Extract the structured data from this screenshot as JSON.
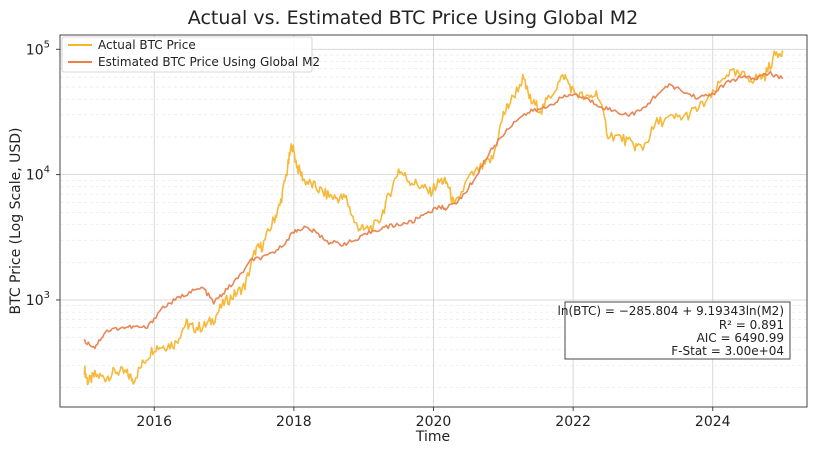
{
  "chart_data": {
    "type": "line",
    "title": "Actual vs. Estimated BTC Price Using Global M2",
    "xlabel": "Time",
    "ylabel": "BTC Price (Log Scale, USD)",
    "yscale": "log",
    "xlim": [
      2014.65,
      2025.35
    ],
    "ylim": [
      140,
      130000
    ],
    "x_ticks": [
      2016,
      2018,
      2020,
      2022,
      2024
    ],
    "x_tick_labels": [
      "2016",
      "2018",
      "2020",
      "2022",
      "2024"
    ],
    "y_ticks": [
      1000,
      10000,
      100000
    ],
    "y_tick_labels": [
      {
        "base": "10",
        "exp": "3"
      },
      {
        "base": "10",
        "exp": "4"
      },
      {
        "base": "10",
        "exp": "5"
      }
    ],
    "grid": true,
    "legend_position": "top-left",
    "series": [
      {
        "name": "Actual BTC Price",
        "color": "#f5b52e",
        "x": [
          2015.0,
          2015.05,
          2015.15,
          2015.3,
          2015.45,
          2015.6,
          2015.7,
          2015.85,
          2016.0,
          2016.15,
          2016.3,
          2016.45,
          2016.55,
          2016.7,
          2016.85,
          2017.0,
          2017.15,
          2017.3,
          2017.45,
          2017.55,
          2017.7,
          2017.8,
          2017.9,
          2017.97,
          2018.05,
          2018.15,
          2018.3,
          2018.45,
          2018.6,
          2018.75,
          2018.88,
          2019.0,
          2019.2,
          2019.35,
          2019.5,
          2019.65,
          2019.8,
          2019.95,
          2020.1,
          2020.2,
          2020.3,
          2020.5,
          2020.7,
          2020.85,
          2021.0,
          2021.1,
          2021.28,
          2021.4,
          2021.55,
          2021.7,
          2021.87,
          2022.0,
          2022.2,
          2022.35,
          2022.5,
          2022.7,
          2022.87,
          2023.0,
          2023.2,
          2023.4,
          2023.6,
          2023.8,
          2024.0,
          2024.2,
          2024.4,
          2024.6,
          2024.75,
          2024.9,
          2025.0
        ],
        "values": [
          280,
          220,
          250,
          240,
          270,
          260,
          230,
          320,
          420,
          430,
          450,
          650,
          600,
          610,
          700,
          950,
          1100,
          1300,
          2500,
          2700,
          4200,
          5700,
          10500,
          17500,
          11500,
          9000,
          8000,
          7000,
          6500,
          6500,
          4000,
          3600,
          4000,
          6500,
          11000,
          9000,
          8200,
          7200,
          9000,
          8500,
          5500,
          9300,
          11500,
          13500,
          30000,
          38000,
          58000,
          38000,
          33000,
          45000,
          62000,
          46000,
          40000,
          45000,
          21000,
          19500,
          17000,
          16500,
          26000,
          28000,
          29000,
          34000,
          43000,
          65000,
          62000,
          58000,
          62000,
          92000,
          98000
        ]
      },
      {
        "name": "Estimated BTC Price Using Global M2",
        "color": "#e8804d",
        "x": [
          2015.0,
          2015.15,
          2015.3,
          2015.5,
          2015.7,
          2015.9,
          2016.1,
          2016.3,
          2016.5,
          2016.7,
          2016.85,
          2017.0,
          2017.2,
          2017.4,
          2017.6,
          2017.8,
          2018.0,
          2018.15,
          2018.3,
          2018.5,
          2018.7,
          2018.9,
          2019.1,
          2019.3,
          2019.5,
          2019.7,
          2019.9,
          2020.1,
          2020.2,
          2020.4,
          2020.6,
          2020.8,
          2021.0,
          2021.2,
          2021.4,
          2021.6,
          2021.8,
          2022.0,
          2022.2,
          2022.4,
          2022.6,
          2022.8,
          2023.0,
          2023.2,
          2023.4,
          2023.6,
          2023.8,
          2024.0,
          2024.2,
          2024.4,
          2024.6,
          2024.8,
          2025.0
        ],
        "values": [
          470,
          420,
          560,
          600,
          610,
          600,
          850,
          1000,
          1150,
          1250,
          950,
          1150,
          1500,
          2100,
          2200,
          2600,
          3500,
          3800,
          3500,
          2900,
          2800,
          3000,
          3500,
          3800,
          4000,
          4200,
          5000,
          5500,
          5400,
          6500,
          9500,
          15000,
          21000,
          28000,
          32000,
          34000,
          40000,
          44000,
          40000,
          35000,
          32000,
          30000,
          33000,
          44000,
          52000,
          45000,
          41000,
          44000,
          54000,
          60000,
          58000,
          65000,
          58000
        ]
      }
    ],
    "stats_box": {
      "equation": "ln(BTC) = −285.804 + 9.19343ln(M2)",
      "r2": "R² = 0.891",
      "aic": "AIC = 6490.99",
      "fstat": "F-Stat = 3.00e+04"
    }
  }
}
